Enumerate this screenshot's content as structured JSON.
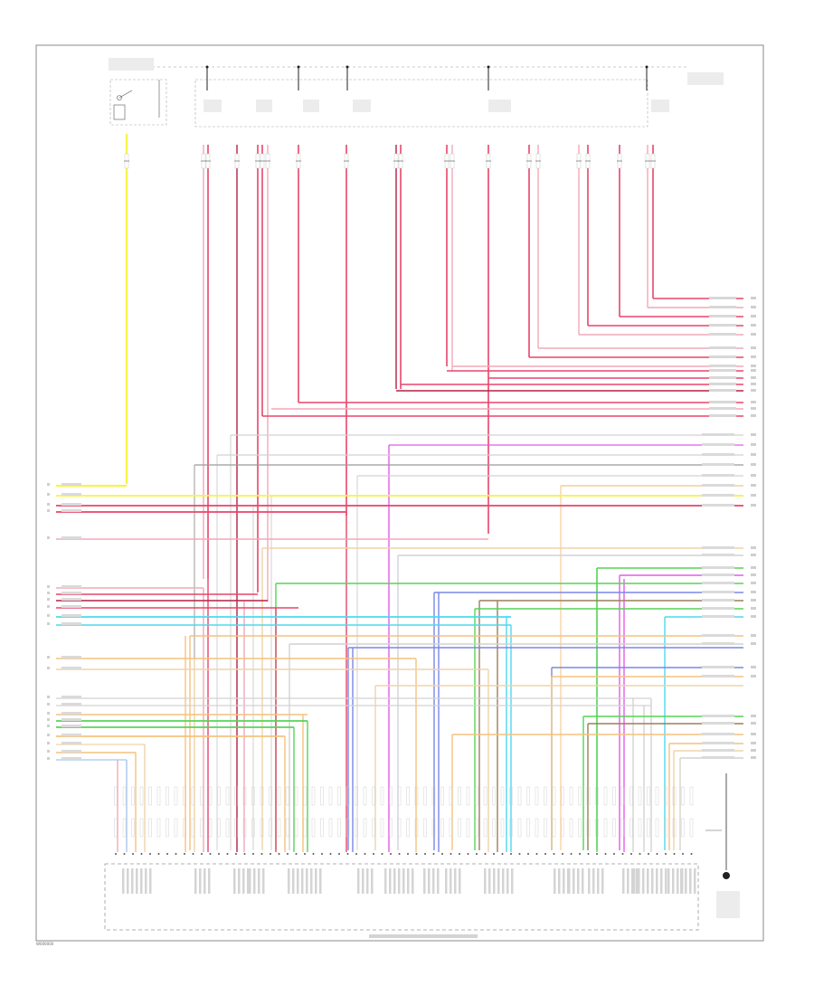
{
  "footer_id": "W000000",
  "colors": {
    "yellow": "#f7f34a",
    "red": "#e8456a",
    "pink": "#f2a9b9",
    "dark_red": "#b32145",
    "orange": "#f4c27e",
    "tan": "#f0d3a8",
    "green": "#56d457",
    "light_green": "#9fe39c",
    "blue": "#7b87e6",
    "light_blue": "#a7c6f0",
    "cyan": "#4dd9ef",
    "magenta": "#e45ce9",
    "violet": "#c7a3e8",
    "gray": "#9a9a9a",
    "light_gray": "#d2d2d2",
    "brown": "#9c7f5a",
    "dark_gray": "#555555",
    "black": "#222222"
  },
  "icons": {
    "ground": "ground-symbol-icon",
    "switch": "relay-switch-icon",
    "connector": "connector-pin-icon"
  }
}
